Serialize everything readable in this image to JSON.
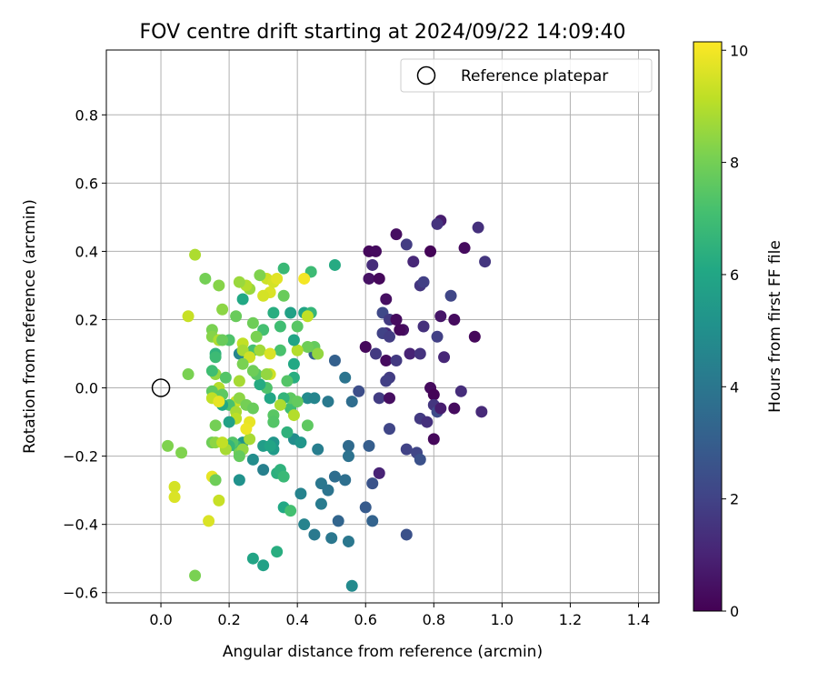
{
  "chart_data": {
    "type": "scatter",
    "title": "FOV centre drift starting at 2024/09/22 14:09:40",
    "xlabel": "Angular distance from reference (arcmin)",
    "ylabel": "Rotation from reference (arcmin)",
    "xlim": [
      -0.16,
      1.46
    ],
    "ylim": [
      -0.63,
      0.99
    ],
    "xticks": [
      "0.0",
      "0.2",
      "0.4",
      "0.6",
      "0.8",
      "1.0",
      "1.2",
      "1.4"
    ],
    "yticks": [
      "−0.6",
      "−0.4",
      "−0.2",
      "0.0",
      "0.2",
      "0.4",
      "0.6",
      "0.8"
    ],
    "grid": true,
    "legend": {
      "position": "top-right",
      "label": "Reference platepar"
    },
    "reference_point": {
      "x": 0.0,
      "y": 0.0
    },
    "colorbar": {
      "label": "Hours from first FF file",
      "colormap": "viridis",
      "range": [
        0,
        10.15
      ],
      "ticks": [
        "0",
        "2",
        "4",
        "6",
        "8",
        "10"
      ]
    },
    "series": [
      {
        "columns": [
          "x",
          "y",
          "hours"
        ],
        "points": [
          [
            0.69,
            0.45,
            0.4
          ],
          [
            0.82,
            0.49,
            0.8
          ],
          [
            0.93,
            0.47,
            1.4
          ],
          [
            0.95,
            0.37,
            1.6
          ],
          [
            0.89,
            0.41,
            0.3
          ],
          [
            0.81,
            0.48,
            1.5
          ],
          [
            0.72,
            0.42,
            1.8
          ],
          [
            0.61,
            0.4,
            0.2
          ],
          [
            0.63,
            0.4,
            0.3
          ],
          [
            0.62,
            0.36,
            1.3
          ],
          [
            0.61,
            0.32,
            0.5
          ],
          [
            0.64,
            0.32,
            0.2
          ],
          [
            0.74,
            0.37,
            1.1
          ],
          [
            0.79,
            0.4,
            0.1
          ],
          [
            0.76,
            0.3,
            1.6
          ],
          [
            0.77,
            0.31,
            1.9
          ],
          [
            0.85,
            0.27,
            2.1
          ],
          [
            0.66,
            0.26,
            0.4
          ],
          [
            0.65,
            0.22,
            2.2
          ],
          [
            0.67,
            0.2,
            1.7
          ],
          [
            0.69,
            0.2,
            0.3
          ],
          [
            0.66,
            0.16,
            1.2
          ],
          [
            0.65,
            0.16,
            2.0
          ],
          [
            0.67,
            0.15,
            1.8
          ],
          [
            0.71,
            0.17,
            0.5
          ],
          [
            0.7,
            0.17,
            0.2
          ],
          [
            0.77,
            0.18,
            1.4
          ],
          [
            0.81,
            0.15,
            1.9
          ],
          [
            0.82,
            0.21,
            0.6
          ],
          [
            0.86,
            0.2,
            0.3
          ],
          [
            0.92,
            0.15,
            0.2
          ],
          [
            0.6,
            0.12,
            0.2
          ],
          [
            0.63,
            0.1,
            1.7
          ],
          [
            0.73,
            0.1,
            1.0
          ],
          [
            0.76,
            0.1,
            1.5
          ],
          [
            0.83,
            0.09,
            1.1
          ],
          [
            0.66,
            0.08,
            0.3
          ],
          [
            0.69,
            0.08,
            1.7
          ],
          [
            0.67,
            0.03,
            1.8
          ],
          [
            0.66,
            0.02,
            1.9
          ],
          [
            0.58,
            -0.01,
            2.4
          ],
          [
            0.64,
            -0.03,
            1.8
          ],
          [
            0.67,
            -0.03,
            0.4
          ],
          [
            0.79,
            0.0,
            0.3
          ],
          [
            0.8,
            -0.02,
            0.1
          ],
          [
            0.8,
            -0.05,
            1.6
          ],
          [
            0.81,
            -0.07,
            2.3
          ],
          [
            0.82,
            -0.06,
            0.8
          ],
          [
            0.86,
            -0.06,
            0.3
          ],
          [
            0.88,
            -0.01,
            1.3
          ],
          [
            0.94,
            -0.07,
            1.2
          ],
          [
            0.76,
            -0.09,
            1.7
          ],
          [
            0.78,
            -0.1,
            1.4
          ],
          [
            0.67,
            -0.12,
            2.1
          ],
          [
            0.8,
            -0.15,
            0.2
          ],
          [
            0.72,
            -0.18,
            2.0
          ],
          [
            0.75,
            -0.19,
            2.1
          ],
          [
            0.76,
            -0.21,
            2.5
          ],
          [
            0.61,
            -0.17,
            3.0
          ],
          [
            0.55,
            -0.17,
            3.5
          ],
          [
            0.55,
            -0.2,
            3.8
          ],
          [
            0.64,
            -0.25,
            1.0
          ],
          [
            0.62,
            -0.28,
            2.6
          ],
          [
            0.51,
            -0.26,
            3.6
          ],
          [
            0.54,
            -0.27,
            3.7
          ],
          [
            0.47,
            -0.28,
            4.0
          ],
          [
            0.49,
            -0.3,
            3.9
          ],
          [
            0.47,
            -0.34,
            4.2
          ],
          [
            0.6,
            -0.35,
            2.9
          ],
          [
            0.62,
            -0.39,
            3.2
          ],
          [
            0.52,
            -0.39,
            3.3
          ],
          [
            0.42,
            -0.4,
            4.5
          ],
          [
            0.45,
            -0.43,
            4.1
          ],
          [
            0.5,
            -0.44,
            4.0
          ],
          [
            0.55,
            -0.45,
            4.0
          ],
          [
            0.72,
            -0.43,
            2.5
          ],
          [
            0.56,
            -0.58,
            4.8
          ],
          [
            0.51,
            0.08,
            3.1
          ],
          [
            0.49,
            -0.04,
            4.1
          ],
          [
            0.56,
            -0.04,
            3.6
          ],
          [
            0.45,
            0.1,
            3.2
          ],
          [
            0.54,
            0.03,
            3.9
          ],
          [
            0.46,
            -0.18,
            4.3
          ],
          [
            0.39,
            -0.15,
            4.9
          ],
          [
            0.41,
            -0.16,
            5.3
          ],
          [
            0.33,
            -0.16,
            5.3
          ],
          [
            0.33,
            -0.18,
            5.5
          ],
          [
            0.3,
            -0.24,
            4.4
          ],
          [
            0.27,
            -0.21,
            4.9
          ],
          [
            0.23,
            -0.27,
            5.1
          ],
          [
            0.34,
            -0.25,
            6.4
          ],
          [
            0.35,
            -0.24,
            6.5
          ],
          [
            0.36,
            -0.26,
            6.8
          ],
          [
            0.36,
            -0.35,
            6.1
          ],
          [
            0.38,
            -0.36,
            7.1
          ],
          [
            0.3,
            -0.52,
            5.8
          ],
          [
            0.27,
            -0.5,
            5.9
          ],
          [
            0.34,
            -0.48,
            6.3
          ],
          [
            0.43,
            -0.11,
            7.6
          ],
          [
            0.43,
            -0.03,
            4.8
          ],
          [
            0.45,
            -0.03,
            4.6
          ],
          [
            0.41,
            -0.31,
            4.5
          ],
          [
            0.4,
            0.18,
            7.5
          ],
          [
            0.42,
            0.22,
            5.9
          ],
          [
            0.44,
            0.22,
            6.7
          ],
          [
            0.45,
            0.12,
            7.7
          ],
          [
            0.46,
            0.1,
            8.5
          ],
          [
            0.43,
            0.12,
            7.9
          ],
          [
            0.4,
            0.11,
            9.0
          ],
          [
            0.43,
            0.21,
            9.2
          ],
          [
            0.44,
            0.34,
            6.9
          ],
          [
            0.38,
            0.22,
            5.8
          ],
          [
            0.36,
            0.35,
            6.8
          ],
          [
            0.36,
            0.27,
            7.8
          ],
          [
            0.35,
            0.18,
            7.0
          ],
          [
            0.33,
            0.22,
            6.3
          ],
          [
            0.31,
            0.32,
            9.4
          ],
          [
            0.32,
            0.28,
            9.6
          ],
          [
            0.33,
            0.31,
            9.5
          ],
          [
            0.34,
            0.32,
            9.7
          ],
          [
            0.42,
            0.32,
            10.0
          ],
          [
            0.51,
            0.36,
            6.2
          ],
          [
            0.39,
            0.14,
            5.9
          ],
          [
            0.39,
            0.07,
            6.1
          ],
          [
            0.39,
            0.03,
            6.3
          ],
          [
            0.38,
            -0.06,
            7.0
          ],
          [
            0.37,
            0.02,
            7.4
          ],
          [
            0.38,
            -0.03,
            7.6
          ],
          [
            0.39,
            -0.08,
            9.0
          ],
          [
            0.4,
            -0.04,
            7.7
          ],
          [
            0.37,
            -0.13,
            6.5
          ],
          [
            0.36,
            -0.03,
            6.6
          ],
          [
            0.35,
            0.11,
            7.2
          ],
          [
            0.35,
            -0.05,
            8.9
          ],
          [
            0.33,
            -0.08,
            7.5
          ],
          [
            0.33,
            -0.1,
            6.8
          ],
          [
            0.32,
            -0.03,
            6.0
          ],
          [
            0.31,
            0.0,
            7.3
          ],
          [
            0.29,
            0.01,
            6.2
          ],
          [
            0.28,
            0.04,
            7.5
          ],
          [
            0.3,
            -0.17,
            5.6
          ],
          [
            0.32,
            -0.17,
            5.9
          ],
          [
            0.33,
            -0.1,
            7.4
          ],
          [
            0.27,
            0.19,
            7.9
          ],
          [
            0.3,
            0.17,
            7.1
          ],
          [
            0.28,
            0.15,
            8.1
          ],
          [
            0.27,
            0.11,
            7.1
          ],
          [
            0.29,
            0.11,
            8.7
          ],
          [
            0.32,
            0.1,
            9.6
          ],
          [
            0.32,
            0.04,
            9.4
          ],
          [
            0.31,
            0.04,
            8.5
          ],
          [
            0.3,
            0.27,
            9.5
          ],
          [
            0.29,
            0.33,
            8.2
          ],
          [
            0.26,
            0.29,
            8.6
          ],
          [
            0.25,
            0.3,
            9.0
          ],
          [
            0.23,
            0.31,
            8.6
          ],
          [
            0.24,
            0.26,
            6.1
          ],
          [
            0.22,
            0.21,
            7.8
          ],
          [
            0.2,
            0.14,
            7.3
          ],
          [
            0.18,
            0.23,
            8.4
          ],
          [
            0.17,
            0.3,
            8.3
          ],
          [
            0.1,
            0.39,
            8.9
          ],
          [
            0.13,
            0.32,
            8.0
          ],
          [
            0.08,
            0.21,
            9.3
          ],
          [
            0.15,
            0.17,
            8.1
          ],
          [
            0.15,
            0.15,
            8.3
          ],
          [
            0.17,
            0.14,
            8.9
          ],
          [
            0.18,
            0.14,
            7.8
          ],
          [
            0.23,
            0.1,
            4.6
          ],
          [
            0.24,
            0.13,
            9.2
          ],
          [
            0.24,
            0.11,
            8.8
          ],
          [
            0.26,
            0.09,
            9.4
          ],
          [
            0.27,
            0.05,
            7.9
          ],
          [
            0.24,
            0.07,
            8.1
          ],
          [
            0.23,
            0.02,
            8.8
          ],
          [
            0.22,
            -0.04,
            9.3
          ],
          [
            0.2,
            -0.05,
            7.2
          ],
          [
            0.22,
            -0.07,
            8.8
          ],
          [
            0.22,
            -0.09,
            9.1
          ],
          [
            0.23,
            -0.03,
            8.4
          ],
          [
            0.25,
            -0.05,
            8.0
          ],
          [
            0.27,
            -0.06,
            7.8
          ],
          [
            0.26,
            -0.1,
            9.8
          ],
          [
            0.24,
            -0.16,
            5.2
          ],
          [
            0.22,
            -0.17,
            6.6
          ],
          [
            0.21,
            -0.16,
            7.4
          ],
          [
            0.2,
            -0.17,
            6.7
          ],
          [
            0.19,
            -0.18,
            8.8
          ],
          [
            0.23,
            -0.19,
            8.0
          ],
          [
            0.24,
            -0.18,
            8.5
          ],
          [
            0.26,
            -0.15,
            8.8
          ],
          [
            0.25,
            -0.12,
            9.9
          ],
          [
            0.23,
            -0.2,
            7.7
          ],
          [
            0.2,
            -0.1,
            5.8
          ],
          [
            0.18,
            -0.05,
            6.1
          ],
          [
            0.17,
            -0.04,
            6.5
          ],
          [
            0.17,
            0.0,
            9.0
          ],
          [
            0.16,
            0.04,
            8.5
          ],
          [
            0.15,
            0.05,
            7.0
          ],
          [
            0.19,
            0.03,
            7.4
          ],
          [
            0.18,
            -0.02,
            7.6
          ],
          [
            0.15,
            -0.01,
            7.6
          ],
          [
            0.15,
            -0.03,
            9.2
          ],
          [
            0.17,
            -0.04,
            9.8
          ],
          [
            0.16,
            -0.11,
            8.0
          ],
          [
            0.15,
            -0.16,
            7.9
          ],
          [
            0.16,
            -0.16,
            8.4
          ],
          [
            0.18,
            -0.16,
            9.2
          ],
          [
            0.15,
            -0.26,
            9.8
          ],
          [
            0.16,
            -0.27,
            7.9
          ],
          [
            0.17,
            -0.33,
            9.3
          ],
          [
            0.14,
            -0.39,
            9.6
          ],
          [
            0.04,
            -0.29,
            9.5
          ],
          [
            0.04,
            -0.32,
            9.6
          ],
          [
            0.1,
            -0.55,
            8.1
          ],
          [
            0.06,
            -0.19,
            8.2
          ],
          [
            0.02,
            -0.17,
            8.2
          ],
          [
            0.08,
            0.04,
            8.1
          ],
          [
            0.16,
            0.1,
            6.5
          ],
          [
            0.16,
            0.09,
            6.9
          ]
        ]
      }
    ]
  }
}
